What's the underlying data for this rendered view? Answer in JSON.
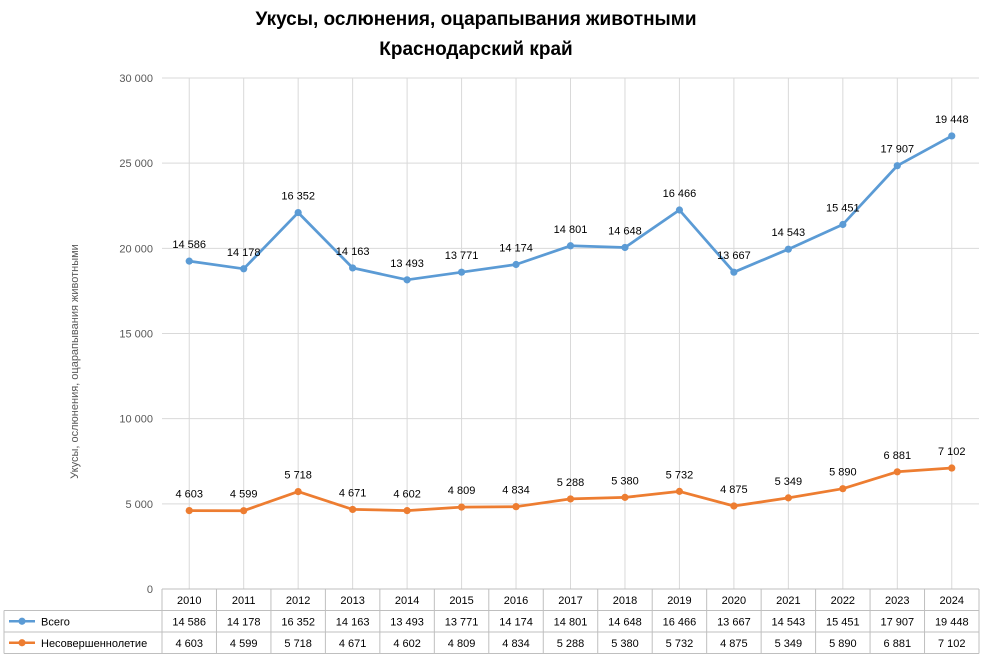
{
  "chart_data": {
    "type": "line",
    "title_line1": "Укусы, ослюнения, оцарапывания животными",
    "title_line2": "Краснодарский край",
    "ylabel": "Укусы, ослюнения, оцарапывания животными",
    "ylim": [
      0,
      30000
    ],
    "yticks": [
      0,
      5000,
      10000,
      15000,
      20000,
      25000,
      30000
    ],
    "ytick_labels": [
      "0",
      "5 000",
      "10 000",
      "15 000",
      "20 000",
      "25 000",
      "30 000"
    ],
    "grid": true,
    "legend_position": "bottom table",
    "categories": [
      "2010",
      "2011",
      "2012",
      "2013",
      "2014",
      "2015",
      "2016",
      "2017",
      "2018",
      "2019",
      "2020",
      "2021",
      "2022",
      "2023",
      "2024"
    ],
    "series": [
      {
        "name": "Всего",
        "color": "#5b9bd5",
        "values": [
          14586,
          14178,
          16352,
          14163,
          13493,
          13771,
          14174,
          14801,
          14648,
          16466,
          13667,
          14543,
          15451,
          17907,
          19448
        ],
        "labels": [
          "14 586",
          "14 178",
          "16 352",
          "14 163",
          "13 493",
          "13 771",
          "14 174",
          "14 801",
          "14 648",
          "16 466",
          "13 667",
          "14 543",
          "15 451",
          "17 907",
          "19 448"
        ],
        "plotted_values": [
          19250,
          18800,
          22100,
          18850,
          18150,
          18600,
          19050,
          20150,
          20050,
          22250,
          18600,
          19950,
          21400,
          24850,
          26600
        ]
      },
      {
        "name": "Несовершеннолетие",
        "color": "#ed7d31",
        "values": [
          4603,
          4599,
          5718,
          4671,
          4602,
          4809,
          4834,
          5288,
          5380,
          5732,
          4875,
          5349,
          5890,
          6881,
          7102
        ],
        "labels": [
          "4 603",
          "4 599",
          "5 718",
          "4 671",
          "4 602",
          "4 809",
          "4 834",
          "5 288",
          "5 380",
          "5 732",
          "4 875",
          "5 349",
          "5 890",
          "6 881",
          "7 102"
        ]
      }
    ]
  }
}
